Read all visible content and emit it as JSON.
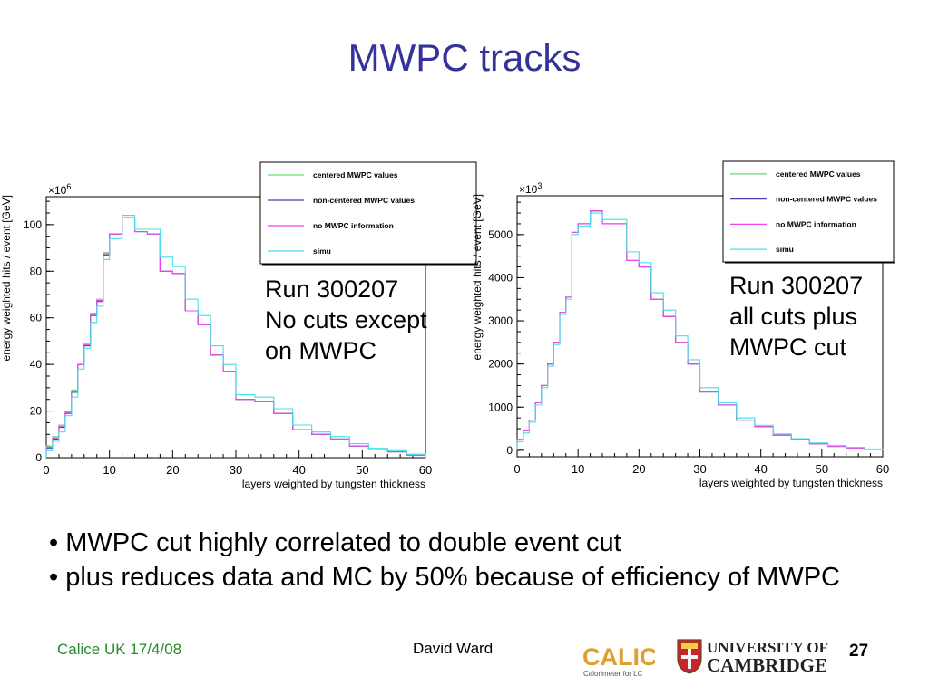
{
  "title": "MWPC tracks",
  "legend_entries": [
    {
      "label": "centered MWPC values",
      "color": "#66dd66"
    },
    {
      "label": "non-centered MWPC values",
      "color": "#4444aa"
    },
    {
      "label": "no MWPC information",
      "color": "#ee44ee"
    },
    {
      "label": "simu",
      "color": "#44e0e8"
    }
  ],
  "chart_data": [
    {
      "type": "line",
      "style": "step histogram",
      "exponent_label": "×10",
      "exponent_power": "6",
      "xlabel": "layers weighted by tungsten thickness",
      "ylabel": "energy weighted hits / event [GeV]",
      "xlim": [
        0,
        60
      ],
      "ylim": [
        0,
        112
      ],
      "x_ticks": [
        0,
        10,
        20,
        30,
        40,
        50,
        60
      ],
      "y_ticks": [
        0,
        20,
        40,
        60,
        80,
        100
      ],
      "x_bin_edges": [
        0,
        1,
        2,
        3,
        4,
        5,
        6,
        7,
        8,
        9,
        10,
        12,
        14,
        16,
        18,
        20,
        22,
        24,
        26,
        28,
        30,
        33,
        36,
        39,
        42,
        45,
        48,
        51,
        54,
        57,
        60
      ],
      "series": [
        {
          "name": "centered MWPC values",
          "values": [
            5,
            9,
            14,
            20,
            29,
            40,
            49,
            62,
            68,
            88,
            96,
            103,
            97,
            96,
            80,
            79,
            63,
            57,
            44,
            37,
            25,
            24,
            19,
            12,
            10,
            8,
            5,
            3.5,
            2.5,
            1
          ]
        },
        {
          "name": "non-centered MWPC values",
          "values": [
            4,
            8,
            13,
            19,
            28,
            40,
            48,
            61,
            67,
            87,
            96,
            103,
            97,
            96,
            80,
            79,
            63,
            57,
            44,
            37,
            25,
            24,
            19,
            12,
            10,
            8,
            5,
            3.5,
            2.5,
            1
          ]
        },
        {
          "name": "no MWPC information",
          "values": [
            4.5,
            8.5,
            13.5,
            19.5,
            28.5,
            40,
            48.5,
            61.5,
            67.5,
            87.5,
            96,
            103,
            97,
            96,
            80,
            79,
            63,
            57,
            44,
            37,
            25,
            24,
            19,
            12,
            10,
            8,
            5,
            3.5,
            2.5,
            1
          ]
        },
        {
          "name": "simu",
          "values": [
            3,
            7,
            11,
            18,
            26,
            38,
            47,
            58,
            65,
            85,
            94,
            104,
            98,
            98,
            86,
            82,
            68,
            61,
            48,
            40,
            27,
            26,
            21,
            14,
            11,
            9,
            6,
            4,
            3,
            1.5
          ]
        }
      ],
      "annotation": [
        "Run 300207",
        "No cuts except",
        "on MWPC"
      ]
    },
    {
      "type": "line",
      "style": "step histogram",
      "exponent_label": "×10",
      "exponent_power": "3",
      "xlabel": "layers weighted by tungsten thickness",
      "ylabel": "energy weighted hits / event [GeV]",
      "xlim": [
        0,
        60
      ],
      "ylim": [
        -150,
        5900
      ],
      "x_ticks": [
        0,
        10,
        20,
        30,
        40,
        50,
        60
      ],
      "y_ticks": [
        0,
        1000,
        2000,
        3000,
        4000,
        5000
      ],
      "x_bin_edges": [
        0,
        1,
        2,
        3,
        4,
        5,
        6,
        7,
        8,
        9,
        10,
        12,
        14,
        16,
        18,
        20,
        22,
        24,
        26,
        28,
        30,
        33,
        36,
        39,
        42,
        45,
        48,
        51,
        54,
        57,
        60
      ],
      "series": [
        {
          "name": "centered MWPC values",
          "values": [
            250,
            450,
            700,
            1100,
            1500,
            2000,
            2500,
            3200,
            3550,
            5050,
            5250,
            5550,
            5250,
            5250,
            4400,
            4250,
            3500,
            3100,
            2500,
            2000,
            1350,
            1050,
            700,
            550,
            350,
            250,
            150,
            90,
            50,
            20
          ]
        },
        {
          "name": "non-centered MWPC values",
          "values": [
            250,
            450,
            700,
            1100,
            1500,
            2000,
            2500,
            3200,
            3550,
            5050,
            5250,
            5550,
            5250,
            5250,
            4400,
            4250,
            3500,
            3100,
            2500,
            2000,
            1350,
            1050,
            700,
            550,
            350,
            250,
            150,
            90,
            50,
            20
          ]
        },
        {
          "name": "no MWPC information",
          "values": [
            250,
            450,
            700,
            1100,
            1500,
            2000,
            2500,
            3200,
            3550,
            5050,
            5250,
            5550,
            5250,
            5250,
            4400,
            4250,
            3500,
            3100,
            2500,
            2000,
            1350,
            1050,
            700,
            550,
            350,
            250,
            150,
            90,
            50,
            20
          ]
        },
        {
          "name": "simu",
          "values": [
            200,
            400,
            650,
            1050,
            1450,
            1950,
            2450,
            3150,
            3500,
            5000,
            5200,
            5500,
            5350,
            5350,
            4600,
            4350,
            3650,
            3250,
            2650,
            2100,
            1450,
            1100,
            750,
            580,
            380,
            270,
            170,
            110,
            70,
            30
          ]
        }
      ],
      "annotation": [
        "Run 300207",
        "all cuts plus",
        "MWPC cut"
      ]
    }
  ],
  "bullets": [
    "• MWPC cut highly correlated to double event cut",
    "• plus reduces data and MC by 50% because of efficiency of MWPC"
  ],
  "footer": {
    "left": "Calice UK 17/4/08",
    "center": "David Ward",
    "page_number": "27"
  },
  "logos": {
    "calice_word": "CALICE",
    "calice_sub": "Calorimeter for LC",
    "cambridge_line1": "UNIVERSITY OF",
    "cambridge_line2": "CAMBRIDGE"
  }
}
